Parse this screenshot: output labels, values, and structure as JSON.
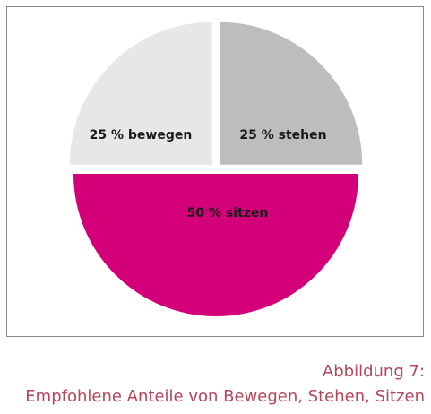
{
  "chart_data": {
    "type": "pie",
    "slices": [
      {
        "label": "25 % bewegen",
        "value": 25,
        "color": "#e8e6e7"
      },
      {
        "label": "25 % stehen",
        "value": 25,
        "color": "#bdbdbd"
      },
      {
        "label": "50 % sitzen",
        "value": 50,
        "color": "#d4007a"
      }
    ],
    "legend": "none"
  },
  "caption": {
    "line1": "Abbildung 7:",
    "line2": "Empfohlene Anteile von Bewegen, Stehen, Sitzen"
  }
}
